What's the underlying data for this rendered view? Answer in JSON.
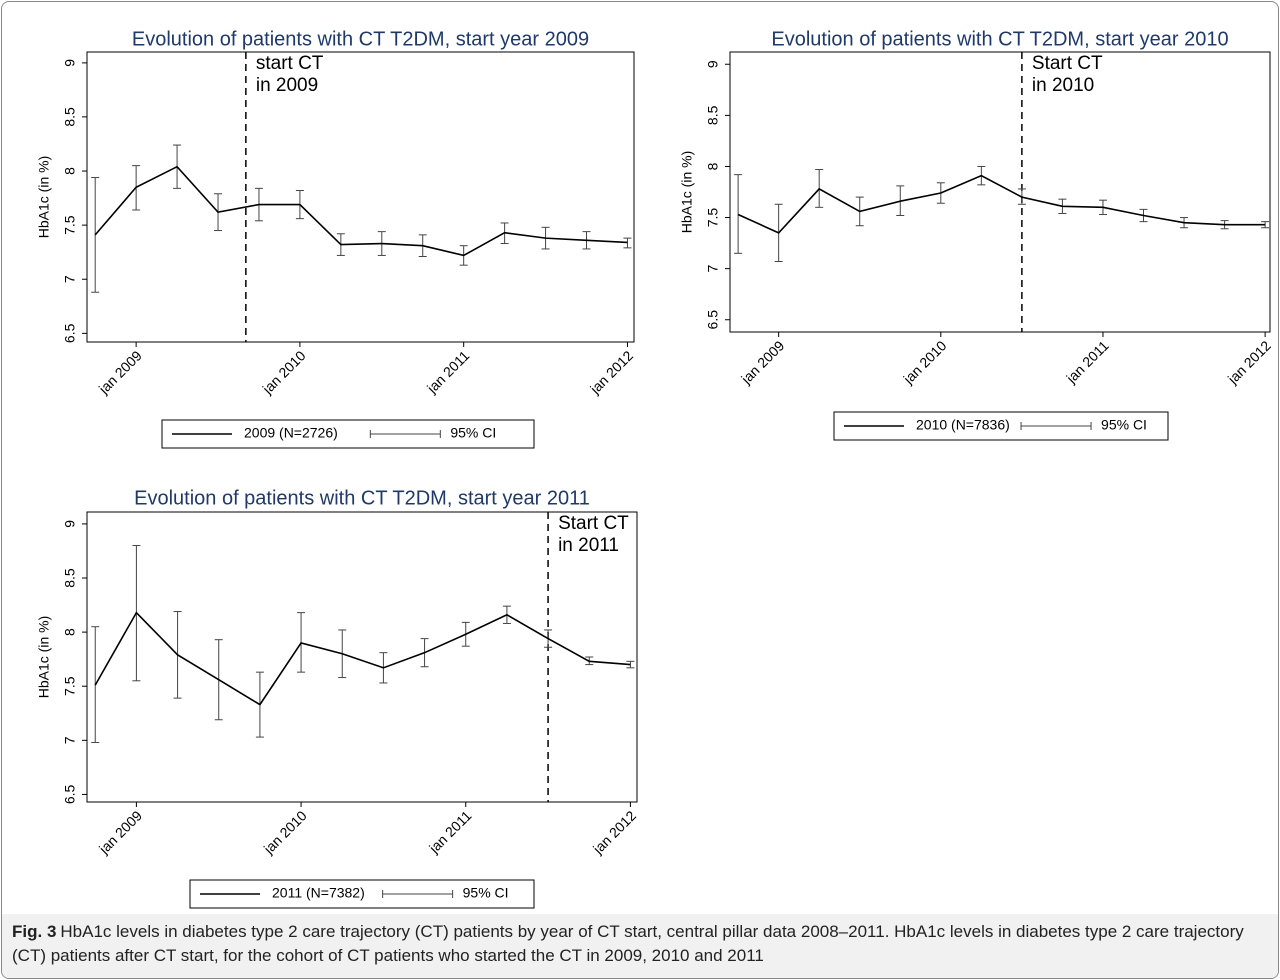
{
  "chart_data": [
    {
      "type": "line",
      "title": "Evolution of patients with CT T2DM, start year 2009",
      "y_label": "HbA1c (in %)",
      "x": [
        2008.75,
        2009,
        2009.25,
        2009.5,
        2009.75,
        2010,
        2010.25,
        2010.5,
        2010.75,
        2011,
        2011.25,
        2011.5,
        2011.75,
        2012
      ],
      "xlim": [
        2008.7,
        2012.04
      ],
      "xticks": [
        {
          "value": 2009,
          "label": "jan 2009"
        },
        {
          "value": 2010,
          "label": "jan 2010"
        },
        {
          "value": 2011,
          "label": "jan 2011"
        },
        {
          "value": 2012,
          "label": "jan 2012"
        }
      ],
      "ylim": [
        6.42,
        9.1
      ],
      "yticks": [
        6.5,
        7,
        7.5,
        8,
        8.5,
        9
      ],
      "series": [
        {
          "name": "2009 (N=2726)",
          "color": "#000000",
          "values": [
            7.41,
            7.85,
            8.04,
            7.62,
            7.69,
            7.69,
            7.32,
            7.33,
            7.31,
            7.22,
            7.43,
            7.38,
            7.36,
            7.34
          ],
          "lower": [
            6.88,
            7.64,
            7.84,
            7.45,
            7.54,
            7.56,
            7.22,
            7.22,
            7.21,
            7.13,
            7.33,
            7.28,
            7.28,
            7.29
          ],
          "upper": [
            7.94,
            8.05,
            8.24,
            7.79,
            7.84,
            7.82,
            7.42,
            7.44,
            7.41,
            7.31,
            7.52,
            7.48,
            7.44,
            7.38
          ]
        }
      ],
      "ci_name": "95% CI",
      "start_line": 2009.67,
      "annotation": [
        "start CT",
        "in 2009"
      ]
    },
    {
      "type": "line",
      "title": "Evolution of patients with CT T2DM, start year 2010",
      "y_label": "HbA1c (in %)",
      "x": [
        2008.75,
        2009,
        2009.25,
        2009.5,
        2009.75,
        2010,
        2010.25,
        2010.5,
        2010.75,
        2011,
        2011.25,
        2011.5,
        2011.75,
        2012
      ],
      "xlim": [
        2008.7,
        2012.03
      ],
      "xticks": [
        {
          "value": 2009,
          "label": "jan 2009"
        },
        {
          "value": 2010,
          "label": "jan 2010"
        },
        {
          "value": 2011,
          "label": "jan 2011"
        },
        {
          "value": 2012,
          "label": "jan 2012"
        }
      ],
      "ylim": [
        6.38,
        9.12
      ],
      "yticks": [
        6.5,
        7,
        7.5,
        8,
        8.5,
        9
      ],
      "series": [
        {
          "name": "2010 (N=7836)",
          "color": "#000000",
          "values": [
            7.53,
            7.35,
            7.78,
            7.56,
            7.66,
            7.74,
            7.91,
            7.7,
            7.61,
            7.6,
            7.52,
            7.45,
            7.43,
            7.43
          ],
          "lower": [
            7.15,
            7.07,
            7.6,
            7.42,
            7.52,
            7.64,
            7.82,
            7.63,
            7.54,
            7.53,
            7.46,
            7.4,
            7.39,
            7.4
          ],
          "upper": [
            7.92,
            7.63,
            7.97,
            7.7,
            7.81,
            7.84,
            8.0,
            7.78,
            7.68,
            7.67,
            7.58,
            7.5,
            7.47,
            7.46
          ]
        }
      ],
      "ci_name": "95% CI",
      "start_line": 2010.5,
      "annotation": [
        "Start CT",
        "in 2010"
      ]
    },
    {
      "type": "line",
      "title": "Evolution of patients with CT T2DM, start year 2011",
      "y_label": "HbA1c (in %)",
      "x": [
        2008.75,
        2009,
        2009.25,
        2009.5,
        2009.75,
        2010,
        2010.25,
        2010.5,
        2010.75,
        2011,
        2011.25,
        2011.5,
        2011.75,
        2012
      ],
      "xlim": [
        2008.7,
        2012.04
      ],
      "xticks": [
        {
          "value": 2009,
          "label": "jan 2009"
        },
        {
          "value": 2010,
          "label": "jan 2010"
        },
        {
          "value": 2011,
          "label": "jan 2011"
        },
        {
          "value": 2012,
          "label": "jan 2012"
        }
      ],
      "ylim": [
        6.43,
        9.11
      ],
      "yticks": [
        6.5,
        7,
        7.5,
        8,
        8.5,
        9
      ],
      "series": [
        {
          "name": "2011 (N=7382)",
          "color": "#000000",
          "values": [
            7.51,
            8.18,
            7.79,
            7.56,
            7.33,
            7.9,
            7.8,
            7.67,
            7.81,
            7.98,
            8.16,
            7.94,
            7.73,
            7.7
          ],
          "lower": [
            6.98,
            7.55,
            7.39,
            7.19,
            7.03,
            7.63,
            7.58,
            7.53,
            7.68,
            7.87,
            8.08,
            7.86,
            7.7,
            7.67
          ],
          "upper": [
            8.05,
            8.8,
            8.19,
            7.93,
            7.63,
            8.18,
            8.02,
            7.81,
            7.94,
            8.09,
            8.24,
            8.02,
            7.77,
            7.73
          ]
        }
      ],
      "ci_name": "95% CI",
      "start_line": 2011.5,
      "annotation": [
        "Start CT",
        "in 2011"
      ]
    }
  ],
  "caption": {
    "label": "Fig. 3",
    "text": "HbA1c levels in diabetes type 2 care trajectory (CT) patients by year of CT start, central pillar data 2008–2011. HbA1c levels in diabetes type 2 care trajectory (CT) patients after CT start, for the cohort of CT patients who started the CT in 2009, 2010 and 2011"
  }
}
